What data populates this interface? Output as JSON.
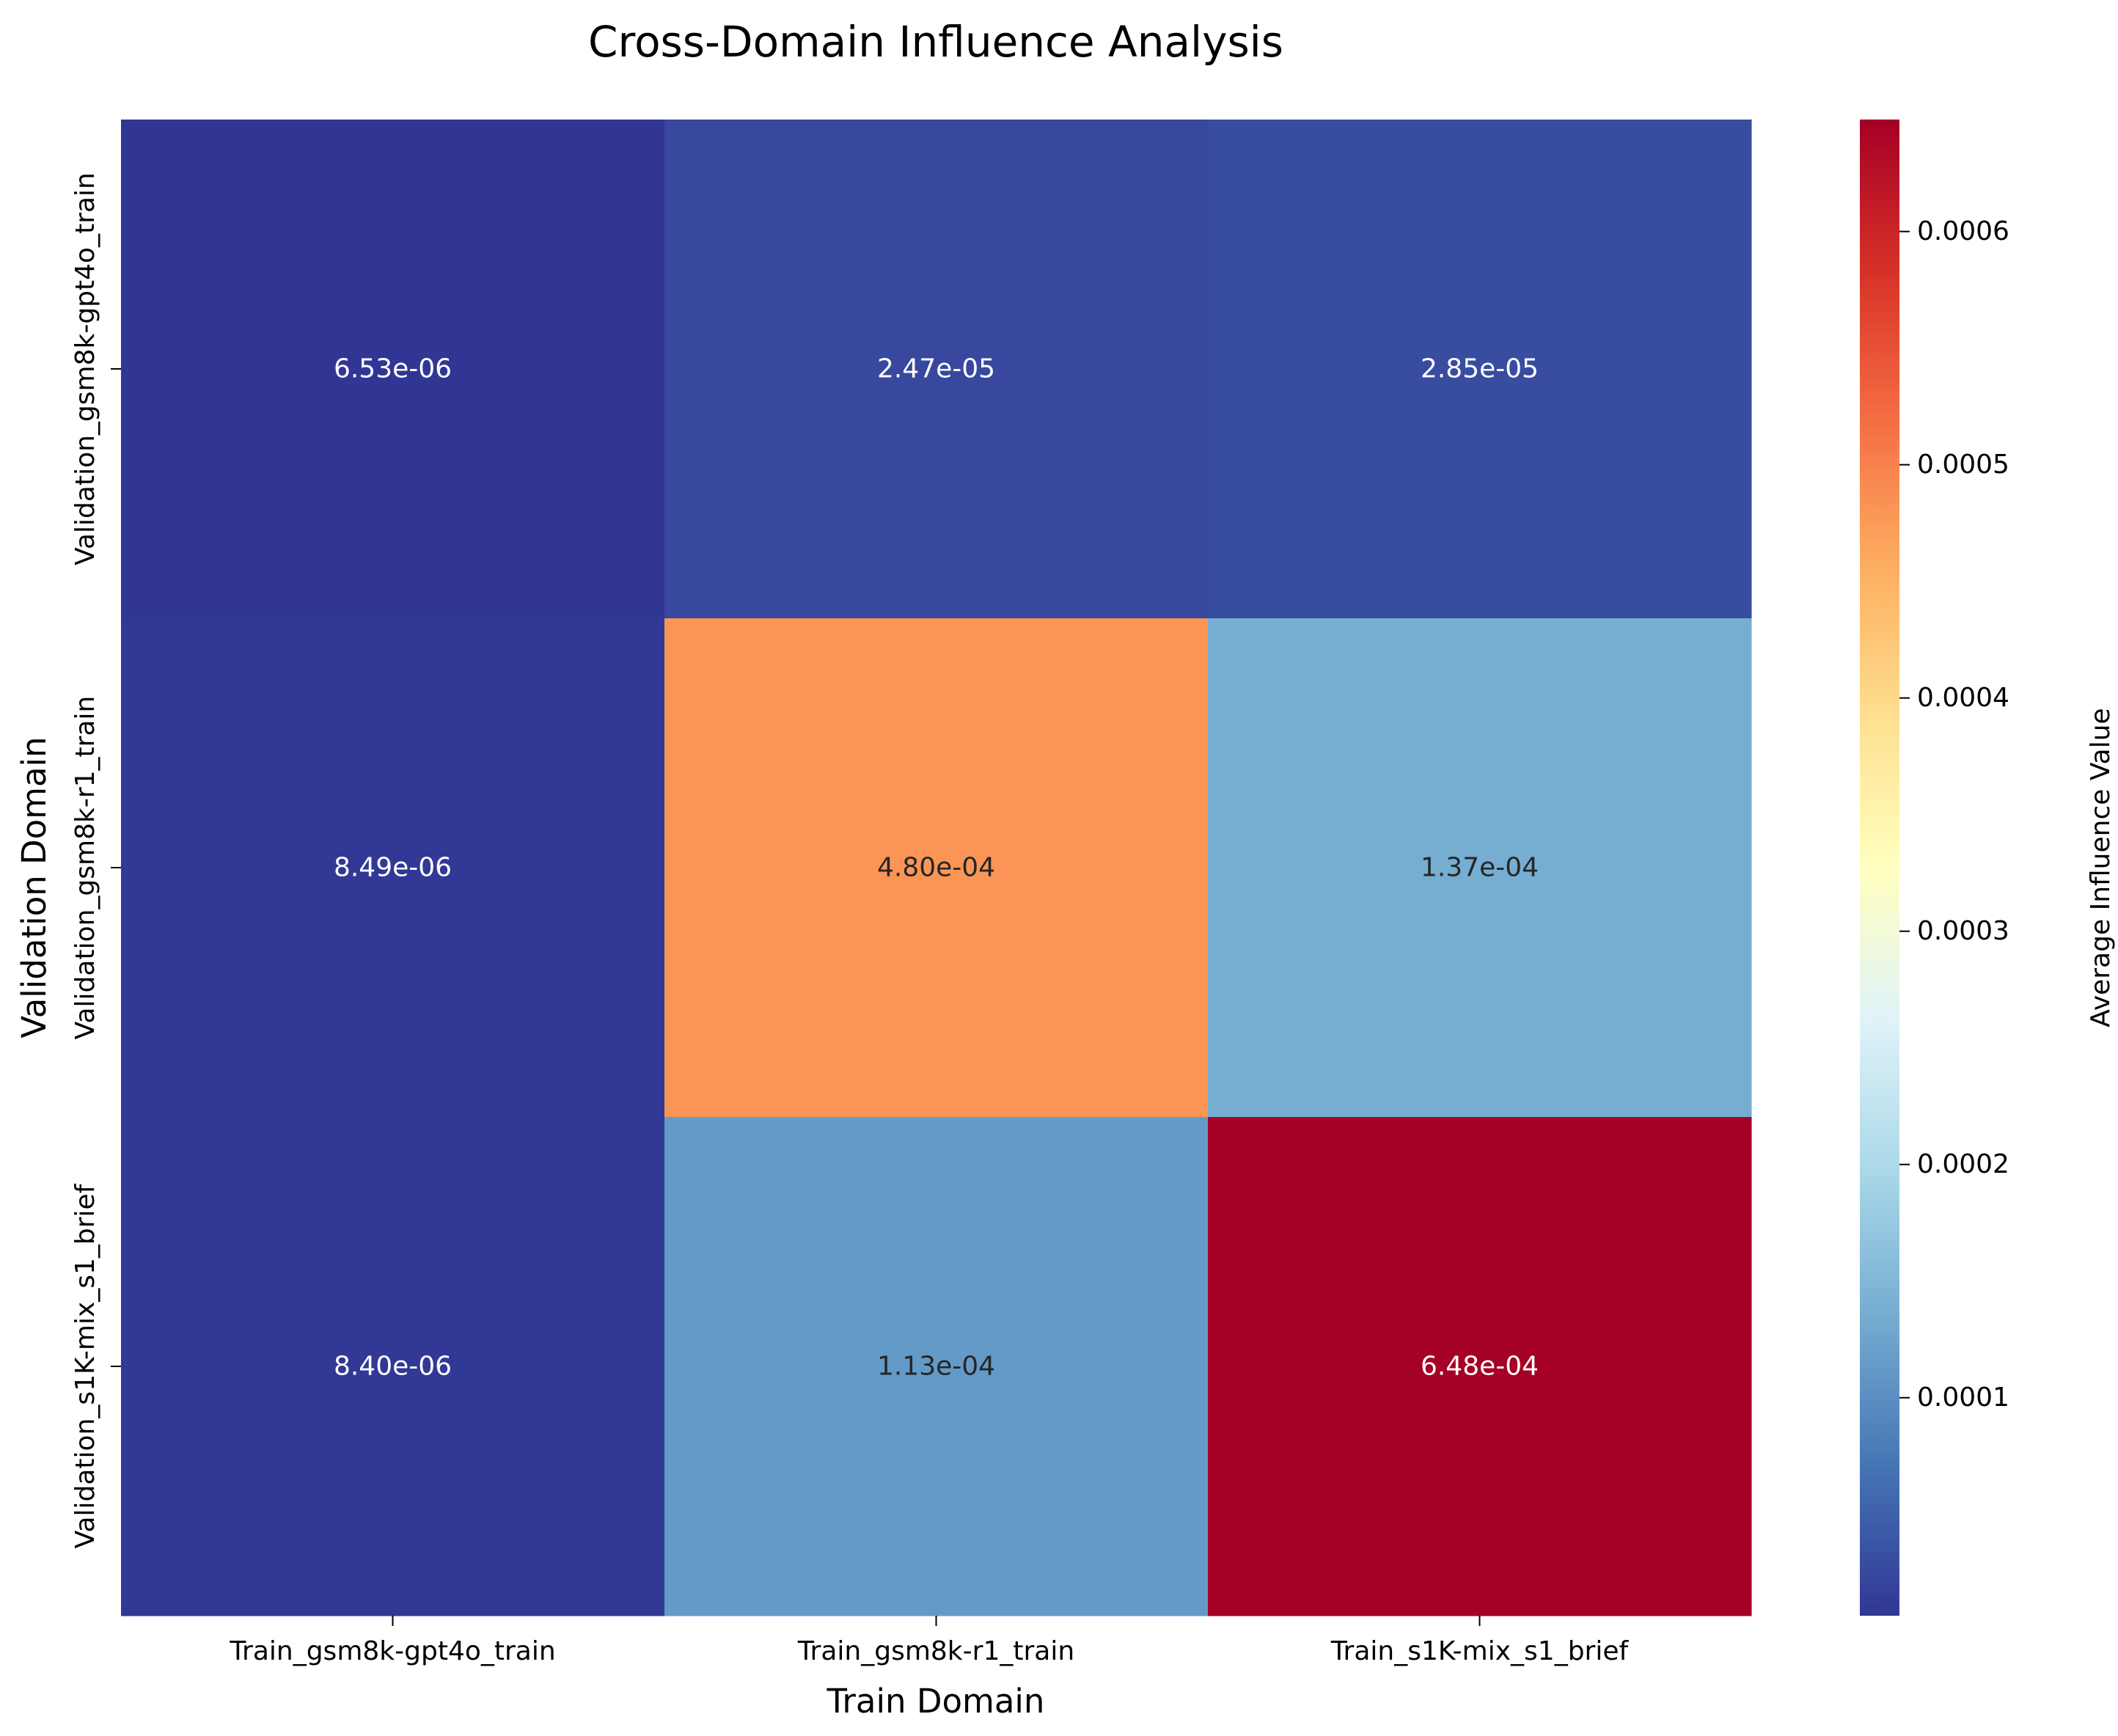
{
  "chart_data": {
    "type": "heatmap",
    "title": "Cross-Domain Influence Analysis",
    "xlabel": "Train Domain",
    "ylabel": "Validation Domain",
    "x_categories": [
      "Train_gsm8k-gpt4o_train",
      "Train_gsm8k-r1_train",
      "Train_s1K-mix_s1_brief"
    ],
    "y_categories": [
      "Validation_gsm8k-gpt4o_train",
      "Validation_gsm8k-r1_train",
      "Validation_s1K-mix_s1_brief"
    ],
    "values": [
      [
        6.53e-06,
        2.47e-05,
        2.85e-05
      ],
      [
        8.49e-06,
        0.00048,
        0.000137
      ],
      [
        8.4e-06,
        0.000113,
        0.000648
      ]
    ],
    "cell_labels": [
      [
        "6.53e-06",
        "2.47e-05",
        "2.85e-05"
      ],
      [
        "8.49e-06",
        "4.80e-04",
        "1.37e-04"
      ],
      [
        "8.40e-06",
        "1.13e-04",
        "6.48e-04"
      ]
    ],
    "colorbar": {
      "label": "Average Influence Value",
      "colormap": "RdYlBu_r",
      "vmin": 6.53e-06,
      "vmax": 0.000648,
      "ticks": [
        0.0001,
        0.0002,
        0.0003,
        0.0004,
        0.0005,
        0.0006
      ],
      "tick_labels": [
        "0.0001",
        "0.0002",
        "0.0003",
        "0.0004",
        "0.0005",
        "0.0006"
      ]
    }
  }
}
